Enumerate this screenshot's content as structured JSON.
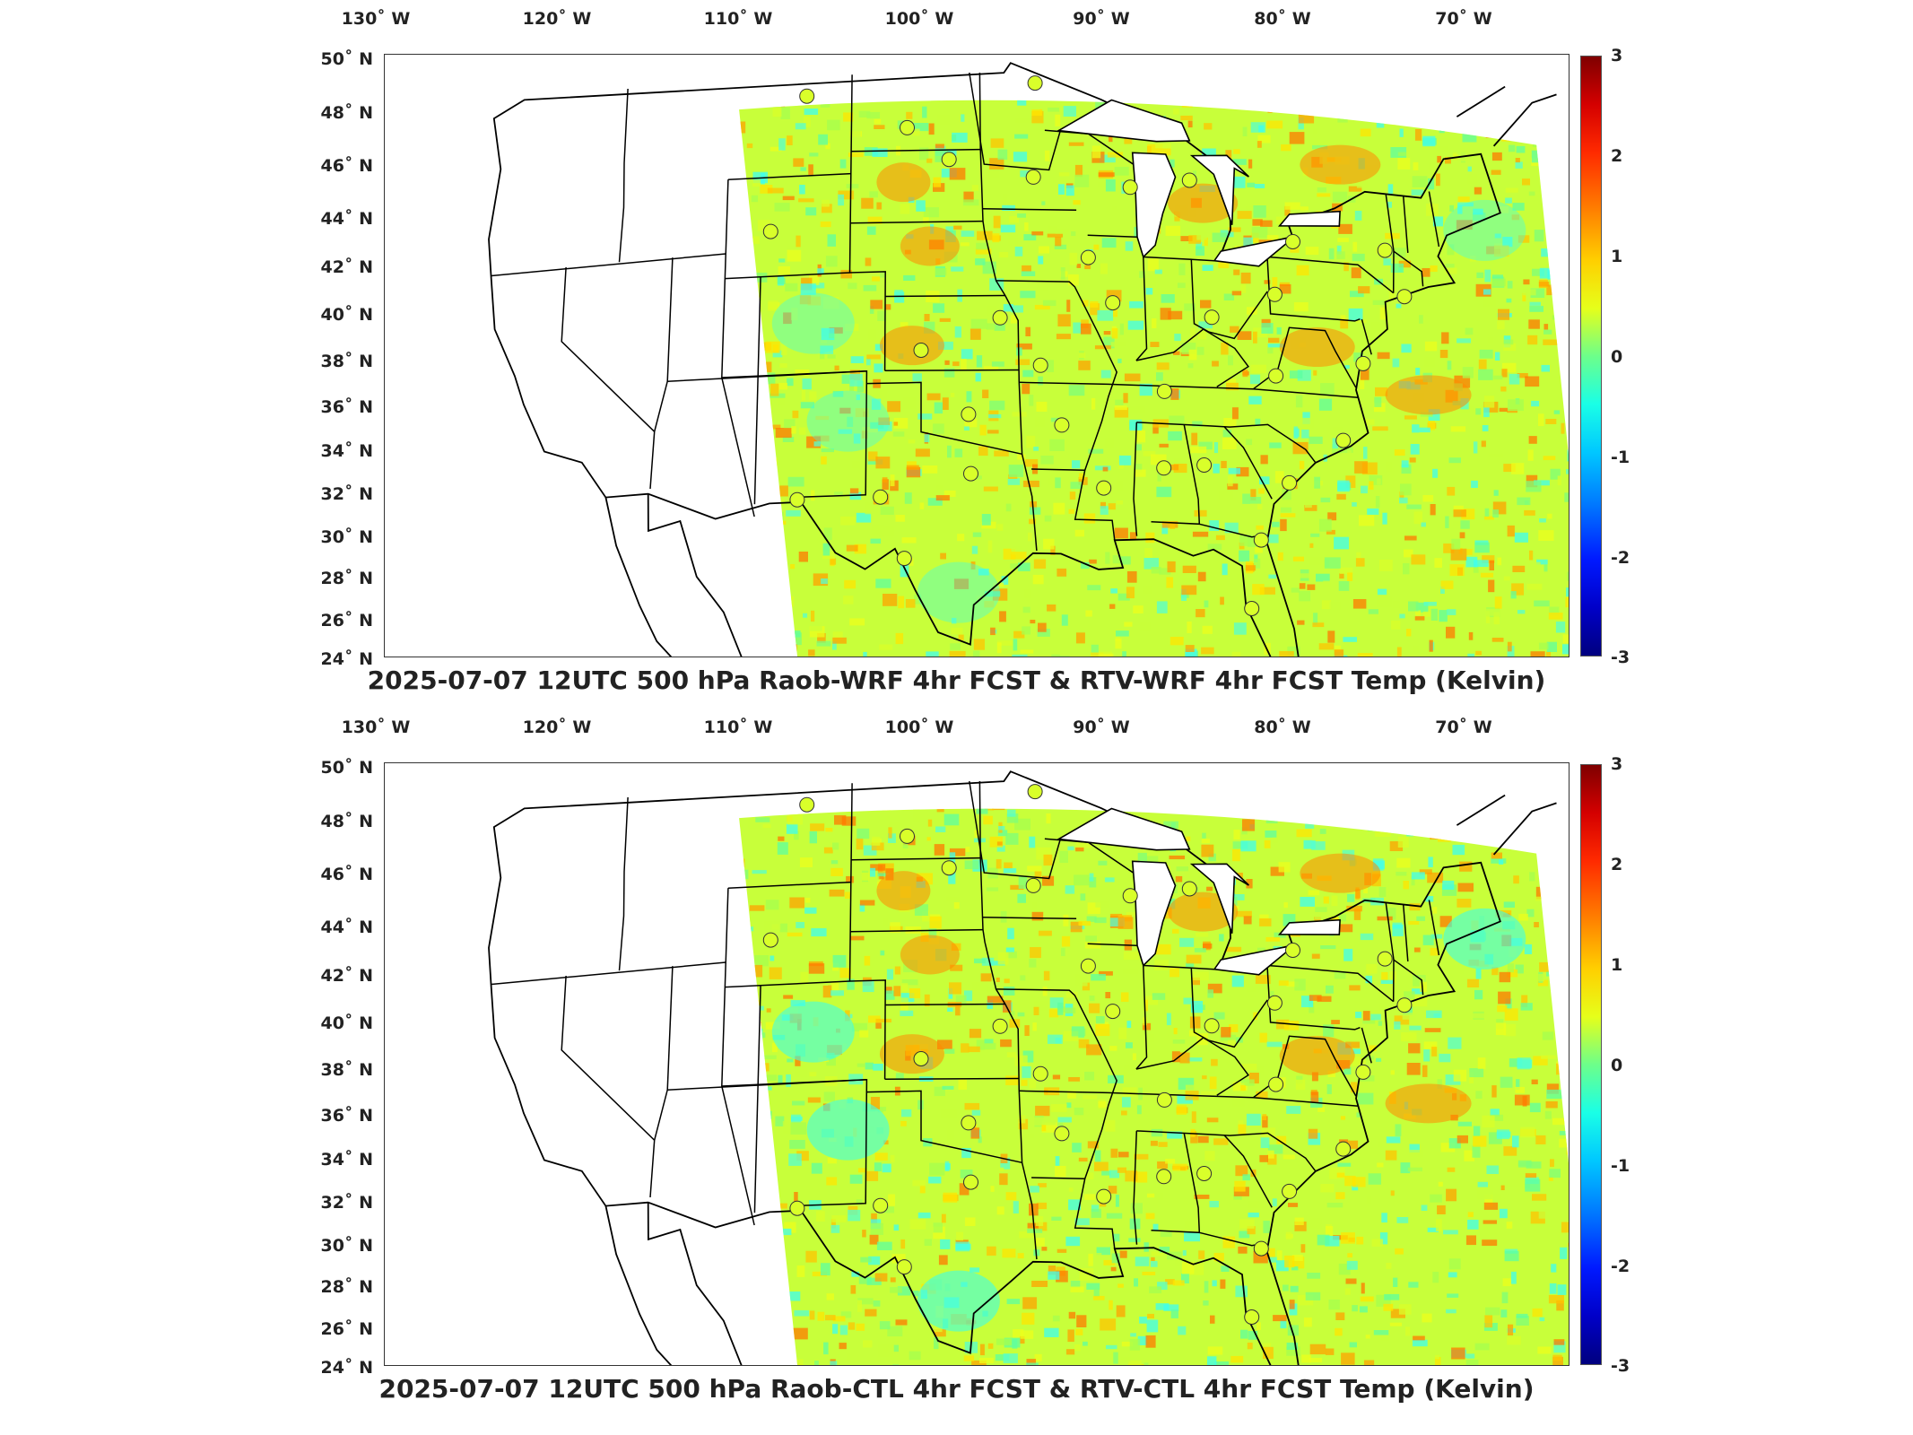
{
  "lon_labels": [
    "130˚ W",
    "120˚ W",
    "110˚ W",
    "100˚ W",
    "90˚ W",
    "80˚ W",
    "70˚ W"
  ],
  "lat_labels": [
    "50˚ N",
    "48˚ N",
    "46˚ N",
    "44˚ N",
    "42˚ N",
    "40˚ N",
    "38˚ N",
    "36˚ N",
    "34˚ N",
    "32˚ N",
    "30˚ N",
    "28˚ N",
    "26˚ N",
    "24˚ N"
  ],
  "colorbar": {
    "ticks": [
      "3",
      "2",
      "1",
      "0",
      "-1",
      "-2",
      "-3"
    ],
    "unit": "Kelvin",
    "range": [
      -3,
      3
    ],
    "colormap": "jet"
  },
  "panels": [
    {
      "title": "2025-07-07 12UTC 500 hPa Raob-WRF 4hr FCST & RTV-WRF 4hr FCST Temp (Kelvin)"
    },
    {
      "title": "2025-07-07 12UTC 500 hPa Raob-CTL 4hr FCST & RTV-CTL 4hr FCST Temp (Kelvin)"
    }
  ],
  "map": {
    "projection": "lambert-conformal",
    "extent": {
      "lon": [
        -130,
        -65
      ],
      "lat": [
        24,
        50
      ]
    },
    "colors": {
      "border": "#000000",
      "frame": "#333333",
      "field_base": "#c8ff3a"
    },
    "raob_stations": [
      {
        "name": "station",
        "lat": 48.2,
        "lon": -106.6
      },
      {
        "name": "station",
        "lat": 46.8,
        "lon": -100.8
      },
      {
        "name": "station",
        "lat": 45.5,
        "lon": -98.4
      },
      {
        "name": "station",
        "lat": 48.6,
        "lon": -93.4
      },
      {
        "name": "station",
        "lat": 44.8,
        "lon": -93.6
      },
      {
        "name": "station",
        "lat": 42.8,
        "lon": -108.5
      },
      {
        "name": "station",
        "lat": 41.6,
        "lon": -90.6
      },
      {
        "name": "station",
        "lat": 44.5,
        "lon": -88.1
      },
      {
        "name": "station",
        "lat": 44.9,
        "lon": -84.7
      },
      {
        "name": "station",
        "lat": 42.7,
        "lon": -79.0
      },
      {
        "name": "station",
        "lat": 42.7,
        "lon": -73.8
      },
      {
        "name": "station",
        "lat": 40.9,
        "lon": -72.9
      },
      {
        "name": "station",
        "lat": 40.5,
        "lon": -80.2
      },
      {
        "name": "station",
        "lat": 39.8,
        "lon": -89.3
      },
      {
        "name": "station",
        "lat": 39.1,
        "lon": -95.6
      },
      {
        "name": "station",
        "lat": 39.4,
        "lon": -83.8
      },
      {
        "name": "station",
        "lat": 37.8,
        "lon": -100.0
      },
      {
        "name": "station",
        "lat": 37.2,
        "lon": -93.4
      },
      {
        "name": "station",
        "lat": 37.2,
        "lon": -80.4
      },
      {
        "name": "station",
        "lat": 36.3,
        "lon": -86.6
      },
      {
        "name": "station",
        "lat": 38.0,
        "lon": -75.5
      },
      {
        "name": "station",
        "lat": 35.2,
        "lon": -97.4
      },
      {
        "name": "station",
        "lat": 34.8,
        "lon": -92.3
      },
      {
        "name": "station",
        "lat": 34.8,
        "lon": -76.9
      },
      {
        "name": "station",
        "lat": 33.4,
        "lon": -84.6
      },
      {
        "name": "station",
        "lat": 33.2,
        "lon": -86.8
      },
      {
        "name": "station",
        "lat": 32.9,
        "lon": -80.0
      },
      {
        "name": "station",
        "lat": 32.8,
        "lon": -97.3
      },
      {
        "name": "station",
        "lat": 32.3,
        "lon": -90.1
      },
      {
        "name": "station",
        "lat": 31.9,
        "lon": -106.7
      },
      {
        "name": "station",
        "lat": 31.9,
        "lon": -102.2
      },
      {
        "name": "station",
        "lat": 30.5,
        "lon": -81.7
      },
      {
        "name": "station",
        "lat": 29.4,
        "lon": -100.9
      },
      {
        "name": "station",
        "lat": 27.7,
        "lon": -82.4
      }
    ]
  }
}
